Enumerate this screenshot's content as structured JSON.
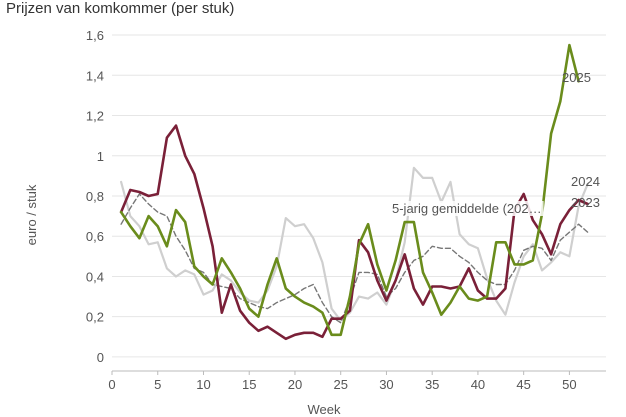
{
  "chart_data": {
    "type": "line",
    "title": "Prijzen van komkommer (per stuk)",
    "xlabel": "Week",
    "ylabel": "euro / stuk",
    "xlim": [
      0,
      54
    ],
    "ylim": [
      -0.07,
      1.65
    ],
    "x_ticks": [
      0,
      5,
      10,
      15,
      20,
      25,
      30,
      35,
      40,
      45,
      50
    ],
    "y_ticks": [
      {
        "value": 0,
        "label": "0"
      },
      {
        "value": 0.2,
        "label": "0,2"
      },
      {
        "value": 0.4,
        "label": "0,4"
      },
      {
        "value": 0.6,
        "label": "0,6"
      },
      {
        "value": 0.8,
        "label": "0,8"
      },
      {
        "value": 1.0,
        "label": "1"
      },
      {
        "value": 1.2,
        "label": "1,2"
      },
      {
        "value": 1.4,
        "label": "1,4"
      },
      {
        "value": 1.6,
        "label": "1,6"
      }
    ],
    "grid": "horizontal",
    "legend": "inline labels at line ends",
    "series": [
      {
        "name": "2024",
        "color": "#cfcfcf",
        "dash": "solid",
        "x": [
          1,
          2,
          3,
          4,
          5,
          6,
          7,
          8,
          9,
          10,
          11,
          12,
          13,
          14,
          15,
          16,
          17,
          18,
          19,
          20,
          21,
          22,
          23,
          24,
          25,
          26,
          27,
          28,
          29,
          30,
          31,
          32,
          33,
          34,
          35,
          36,
          37,
          38,
          39,
          40,
          41,
          42,
          43,
          44,
          45,
          46,
          47,
          48,
          49,
          50,
          51,
          52
        ],
        "y": [
          0.87,
          0.7,
          0.65,
          0.56,
          0.57,
          0.44,
          0.4,
          0.43,
          0.41,
          0.31,
          0.33,
          0.41,
          0.38,
          0.32,
          0.28,
          0.27,
          0.33,
          0.45,
          0.69,
          0.65,
          0.66,
          0.59,
          0.47,
          0.24,
          0.18,
          0.22,
          0.3,
          0.29,
          0.32,
          0.26,
          0.38,
          0.57,
          0.94,
          0.89,
          0.89,
          0.77,
          0.87,
          0.61,
          0.56,
          0.54,
          0.39,
          0.28,
          0.21,
          0.37,
          0.5,
          0.56,
          0.43,
          0.47,
          0.52,
          0.5,
          0.75,
          0.86
        ]
      },
      {
        "name": "5-jarig gemiddelde (202…",
        "color": "#777777",
        "dash": "dashed",
        "x": [
          1,
          2,
          3,
          4,
          5,
          6,
          7,
          8,
          9,
          10,
          11,
          12,
          13,
          14,
          15,
          16,
          17,
          18,
          19,
          20,
          21,
          22,
          23,
          24,
          25,
          26,
          27,
          28,
          29,
          30,
          31,
          32,
          33,
          34,
          35,
          36,
          37,
          38,
          39,
          40,
          41,
          42,
          43,
          44,
          45,
          46,
          47,
          48,
          49,
          50,
          51,
          52
        ],
        "y": [
          0.66,
          0.74,
          0.81,
          0.76,
          0.72,
          0.7,
          0.6,
          0.53,
          0.44,
          0.42,
          0.36,
          0.35,
          0.34,
          0.29,
          0.27,
          0.25,
          0.24,
          0.27,
          0.29,
          0.31,
          0.34,
          0.36,
          0.27,
          0.2,
          0.17,
          0.29,
          0.42,
          0.42,
          0.41,
          0.3,
          0.34,
          0.42,
          0.48,
          0.5,
          0.55,
          0.54,
          0.54,
          0.5,
          0.47,
          0.42,
          0.38,
          0.36,
          0.36,
          0.43,
          0.53,
          0.55,
          0.54,
          0.48,
          0.58,
          0.62,
          0.66,
          0.62
        ]
      },
      {
        "name": "2023",
        "color": "#7a2038",
        "dash": "solid",
        "x": [
          1,
          2,
          3,
          4,
          5,
          6,
          7,
          8,
          9,
          10,
          11,
          12,
          13,
          14,
          15,
          16,
          17,
          18,
          19,
          20,
          21,
          22,
          23,
          24,
          25,
          26,
          27,
          28,
          29,
          30,
          31,
          32,
          33,
          34,
          35,
          36,
          37,
          38,
          39,
          40,
          41,
          42,
          43,
          44,
          45,
          46,
          47,
          48,
          49,
          50,
          51,
          52
        ],
        "y": [
          0.72,
          0.83,
          0.82,
          0.8,
          0.81,
          1.09,
          1.15,
          1.0,
          0.91,
          0.74,
          0.55,
          0.22,
          0.36,
          0.23,
          0.17,
          0.13,
          0.15,
          0.12,
          0.09,
          0.11,
          0.12,
          0.12,
          0.1,
          0.19,
          0.19,
          0.23,
          0.58,
          0.52,
          0.38,
          0.28,
          0.38,
          0.51,
          0.34,
          0.26,
          0.35,
          0.35,
          0.34,
          0.35,
          0.44,
          0.33,
          0.29,
          0.29,
          0.34,
          0.73,
          0.81,
          0.68,
          0.61,
          0.51,
          0.66,
          0.73,
          0.78,
          0.76
        ]
      },
      {
        "name": "2025",
        "color": "#6a8c1c",
        "dash": "solid",
        "x": [
          1,
          2,
          3,
          4,
          5,
          6,
          7,
          8,
          9,
          10,
          11,
          12,
          13,
          14,
          15,
          16,
          17,
          18,
          19,
          20,
          21,
          22,
          23,
          24,
          25,
          26,
          27,
          28,
          29,
          30,
          31,
          32,
          33,
          34,
          35,
          36,
          37,
          38,
          39,
          40,
          41,
          42,
          43,
          44,
          45,
          46,
          47,
          48,
          49,
          50,
          51
        ],
        "y": [
          0.72,
          0.65,
          0.59,
          0.7,
          0.65,
          0.55,
          0.73,
          0.67,
          0.45,
          0.4,
          0.36,
          0.49,
          0.42,
          0.34,
          0.24,
          0.2,
          0.36,
          0.49,
          0.34,
          0.3,
          0.27,
          0.25,
          0.22,
          0.11,
          0.11,
          0.3,
          0.56,
          0.66,
          0.46,
          0.33,
          0.48,
          0.67,
          0.67,
          0.42,
          0.32,
          0.21,
          0.27,
          0.35,
          0.29,
          0.28,
          0.3,
          0.57,
          0.57,
          0.46,
          0.46,
          0.48,
          0.71,
          1.11,
          1.27,
          1.55,
          1.37
        ]
      }
    ]
  }
}
